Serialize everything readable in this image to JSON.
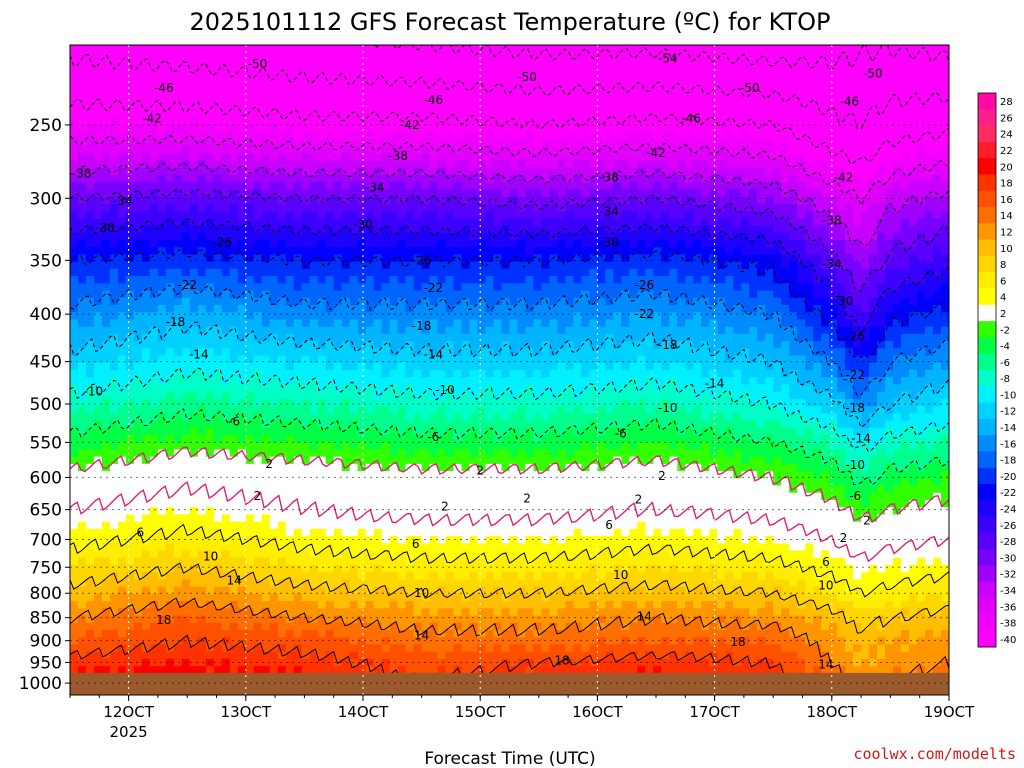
{
  "chart_data": {
    "type": "heatmap",
    "title": "2025101112 GFS Forecast Temperature (ºC) for KTOP",
    "xlabel": "Forecast Time (UTC)",
    "ylabel": "",
    "credit": "coolwx.com/modelts",
    "x_ticks": [
      {
        "label": "12OCT",
        "day": 12,
        "sub": "2025"
      },
      {
        "label": "13OCT",
        "day": 13,
        "sub": ""
      },
      {
        "label": "14OCT",
        "day": 14,
        "sub": ""
      },
      {
        "label": "15OCT",
        "day": 15,
        "sub": ""
      },
      {
        "label": "16OCT",
        "day": 16,
        "sub": ""
      },
      {
        "label": "17OCT",
        "day": 17,
        "sub": ""
      },
      {
        "label": "18OCT",
        "day": 18,
        "sub": ""
      },
      {
        "label": "19OCT",
        "day": 19,
        "sub": ""
      }
    ],
    "x_range_days": [
      11.5,
      19.0
    ],
    "y_axis": {
      "unit": "hPa",
      "scale": "log",
      "range": [
        1030,
        205
      ],
      "ticks": [
        "250",
        "300",
        "350",
        "400",
        "450",
        "500",
        "550",
        "600",
        "650",
        "700",
        "750",
        "800",
        "850",
        "900",
        "950",
        "1000"
      ]
    },
    "ground_level_hPa": 975,
    "colorbar": {
      "values": [
        "28",
        "26",
        "24",
        "22",
        "20",
        "18",
        "16",
        "14",
        "12",
        "10",
        "8",
        "6",
        "4",
        "2",
        "-2",
        "-4",
        "-6",
        "-8",
        "-10",
        "-12",
        "-14",
        "-16",
        "-18",
        "-20",
        "-22",
        "-24",
        "-26",
        "-28",
        "-30",
        "-32",
        "-34",
        "-36",
        "-38",
        "-40"
      ],
      "colors": [
        "#ff0aa5",
        "#ff1e8c",
        "#ff2d64",
        "#ff1e28",
        "#ff0000",
        "#ff3200",
        "#ff5000",
        "#ff6e00",
        "#ff9600",
        "#ffbe00",
        "#ffd700",
        "#ffee00",
        "#ffff00",
        "#ffffff",
        "#32ff00",
        "#00ff46",
        "#00ff8c",
        "#00ffc8",
        "#00f0ff",
        "#00d2ff",
        "#00b4ff",
        "#008cff",
        "#0064ff",
        "#0032ff",
        "#0000ff",
        "#1e00ff",
        "#3c00ff",
        "#5a00ff",
        "#7800ff",
        "#a000ff",
        "#c800ff",
        "#e100ff",
        "#f000ff",
        "#ff00ff"
      ]
    },
    "profile": {
      "level_hPa": [
        1000,
        950,
        900,
        850,
        800,
        750,
        700,
        650,
        600,
        550,
        500,
        450,
        400,
        350,
        300,
        250,
        200
      ],
      "day": [
        11.5,
        12.5,
        13.5,
        14.5,
        15.5,
        16.5,
        17.5,
        18.0,
        18.25,
        18.5,
        19.0
      ],
      "temperature_C": [
        [
          22,
          22,
          21,
          18,
          20,
          21,
          20,
          16,
          13,
          14,
          16
        ],
        [
          19,
          20,
          19,
          17,
          18,
          19,
          18,
          14,
          12,
          13,
          14
        ],
        [
          16,
          18,
          17,
          15,
          15,
          16,
          16,
          13,
          11,
          12,
          13
        ],
        [
          14,
          16,
          14,
          13,
          13,
          14,
          13,
          11,
          9,
          10,
          11
        ],
        [
          11,
          13,
          11,
          10,
          10,
          11,
          10,
          8,
          6,
          7,
          8
        ],
        [
          8,
          10,
          8,
          7,
          7,
          8,
          7,
          5,
          3,
          4,
          5
        ],
        [
          5,
          7,
          5,
          4,
          4,
          5,
          4,
          2,
          0,
          1,
          2
        ],
        [
          2,
          4,
          2,
          1,
          1,
          2,
          1,
          -1,
          -3,
          -2,
          -1
        ],
        [
          -1,
          1,
          0,
          -1,
          -1,
          0,
          -2,
          -4,
          -7,
          -5,
          -4
        ],
        [
          -5,
          -3,
          -4,
          -5,
          -5,
          -4,
          -6,
          -8,
          -11,
          -9,
          -8
        ],
        [
          -9,
          -7,
          -8,
          -9,
          -9,
          -8,
          -10,
          -13,
          -17,
          -14,
          -12
        ],
        [
          -13,
          -11,
          -12,
          -13,
          -13,
          -12,
          -14,
          -18,
          -22,
          -18,
          -16
        ],
        [
          -17,
          -15,
          -17,
          -17,
          -17,
          -16,
          -18,
          -23,
          -28,
          -23,
          -21
        ],
        [
          -22,
          -21,
          -22,
          -22,
          -22,
          -21,
          -23,
          -29,
          -33,
          -29,
          -27
        ],
        [
          -30,
          -29,
          -30,
          -30,
          -31,
          -30,
          -32,
          -36,
          -38,
          -35,
          -33
        ],
        [
          -40,
          -40,
          -41,
          -41,
          -42,
          -41,
          -42,
          -45,
          -46,
          -44,
          -43
        ],
        [
          -48,
          -49,
          -50,
          -51,
          -52,
          -52,
          -53,
          -52,
          -51,
          -51,
          -52
        ]
      ]
    },
    "contour_labels": [
      {
        "text": "-50",
        "day": 13.1,
        "p": 215
      },
      {
        "text": "-50",
        "day": 15.4,
        "p": 222
      },
      {
        "text": "-54",
        "day": 16.6,
        "p": 212
      },
      {
        "text": "-50",
        "day": 17.3,
        "p": 228
      },
      {
        "text": "-50",
        "day": 18.35,
        "p": 220
      },
      {
        "text": "-46",
        "day": 12.3,
        "p": 228
      },
      {
        "text": "-46",
        "day": 14.6,
        "p": 235
      },
      {
        "text": "-46",
        "day": 16.8,
        "p": 246
      },
      {
        "text": "-46",
        "day": 18.15,
        "p": 236
      },
      {
        "text": "-42",
        "day": 12.2,
        "p": 246
      },
      {
        "text": "-42",
        "day": 14.4,
        "p": 250
      },
      {
        "text": "-42",
        "day": 16.5,
        "p": 268
      },
      {
        "text": "-42",
        "day": 18.1,
        "p": 285
      },
      {
        "text": "-38",
        "day": 11.6,
        "p": 282
      },
      {
        "text": "-38",
        "day": 14.3,
        "p": 270
      },
      {
        "text": "-38",
        "day": 16.1,
        "p": 285
      },
      {
        "text": "-38",
        "day": 18.0,
        "p": 317
      },
      {
        "text": "-34",
        "day": 11.95,
        "p": 302
      },
      {
        "text": "-34",
        "day": 14.1,
        "p": 292
      },
      {
        "text": "-34",
        "day": 16.1,
        "p": 310
      },
      {
        "text": "-34",
        "day": 18.0,
        "p": 353
      },
      {
        "text": "-30",
        "day": 11.8,
        "p": 323
      },
      {
        "text": "-30",
        "day": 14.0,
        "p": 320
      },
      {
        "text": "-30",
        "day": 16.1,
        "p": 335
      },
      {
        "text": "-30",
        "day": 18.1,
        "p": 387
      },
      {
        "text": "-26",
        "day": 12.8,
        "p": 335
      },
      {
        "text": "-26",
        "day": 14.5,
        "p": 350
      },
      {
        "text": "-26",
        "day": 16.4,
        "p": 372
      },
      {
        "text": "-26",
        "day": 18.2,
        "p": 423
      },
      {
        "text": "-22",
        "day": 12.5,
        "p": 372
      },
      {
        "text": "-22",
        "day": 14.6,
        "p": 375
      },
      {
        "text": "-22",
        "day": 16.4,
        "p": 400
      },
      {
        "text": "-22",
        "day": 18.2,
        "p": 465
      },
      {
        "text": "-18",
        "day": 12.4,
        "p": 408
      },
      {
        "text": "-18",
        "day": 14.5,
        "p": 412
      },
      {
        "text": "-18",
        "day": 16.6,
        "p": 432
      },
      {
        "text": "-18",
        "day": 18.2,
        "p": 505
      },
      {
        "text": "-14",
        "day": 12.6,
        "p": 442
      },
      {
        "text": "-14",
        "day": 14.6,
        "p": 442
      },
      {
        "text": "-14",
        "day": 17.0,
        "p": 475
      },
      {
        "text": "-14",
        "day": 18.25,
        "p": 545
      },
      {
        "text": "-10",
        "day": 11.7,
        "p": 485
      },
      {
        "text": "-10",
        "day": 14.7,
        "p": 483
      },
      {
        "text": "-10",
        "day": 16.6,
        "p": 505
      },
      {
        "text": "-10",
        "day": 18.2,
        "p": 582
      },
      {
        "text": "-6",
        "day": 12.9,
        "p": 522
      },
      {
        "text": "-6",
        "day": 14.6,
        "p": 543
      },
      {
        "text": "-6",
        "day": 16.2,
        "p": 538
      },
      {
        "text": "-6",
        "day": 18.2,
        "p": 628
      },
      {
        "text": "2",
        "day": 13.2,
        "p": 580
      },
      {
        "text": "2",
        "day": 15.0,
        "p": 590
      },
      {
        "text": "2",
        "day": 16.55,
        "p": 598
      },
      {
        "text": "2",
        "day": 18.3,
        "p": 668
      },
      {
        "text": "2",
        "day": 13.1,
        "p": 628
      },
      {
        "text": "2",
        "day": 14.7,
        "p": 645
      },
      {
        "text": "2",
        "day": 15.4,
        "p": 632
      },
      {
        "text": "2",
        "day": 16.35,
        "p": 634
      },
      {
        "text": "2",
        "day": 18.1,
        "p": 697
      },
      {
        "text": "6",
        "day": 12.1,
        "p": 688
      },
      {
        "text": "6",
        "day": 14.45,
        "p": 708
      },
      {
        "text": "6",
        "day": 16.1,
        "p": 675
      },
      {
        "text": "6",
        "day": 17.95,
        "p": 740
      },
      {
        "text": "10",
        "day": 12.7,
        "p": 730
      },
      {
        "text": "10",
        "day": 14.5,
        "p": 800
      },
      {
        "text": "10",
        "day": 16.2,
        "p": 765
      },
      {
        "text": "10",
        "day": 17.95,
        "p": 785
      },
      {
        "text": "14",
        "day": 12.9,
        "p": 775
      },
      {
        "text": "14",
        "day": 14.5,
        "p": 888
      },
      {
        "text": "14",
        "day": 16.4,
        "p": 848
      },
      {
        "text": "14",
        "day": 17.95,
        "p": 955
      },
      {
        "text": "18",
        "day": 12.3,
        "p": 855
      },
      {
        "text": "18",
        "day": 17.2,
        "p": 903
      },
      {
        "text": "18",
        "day": 15.7,
        "p": 945
      }
    ]
  }
}
